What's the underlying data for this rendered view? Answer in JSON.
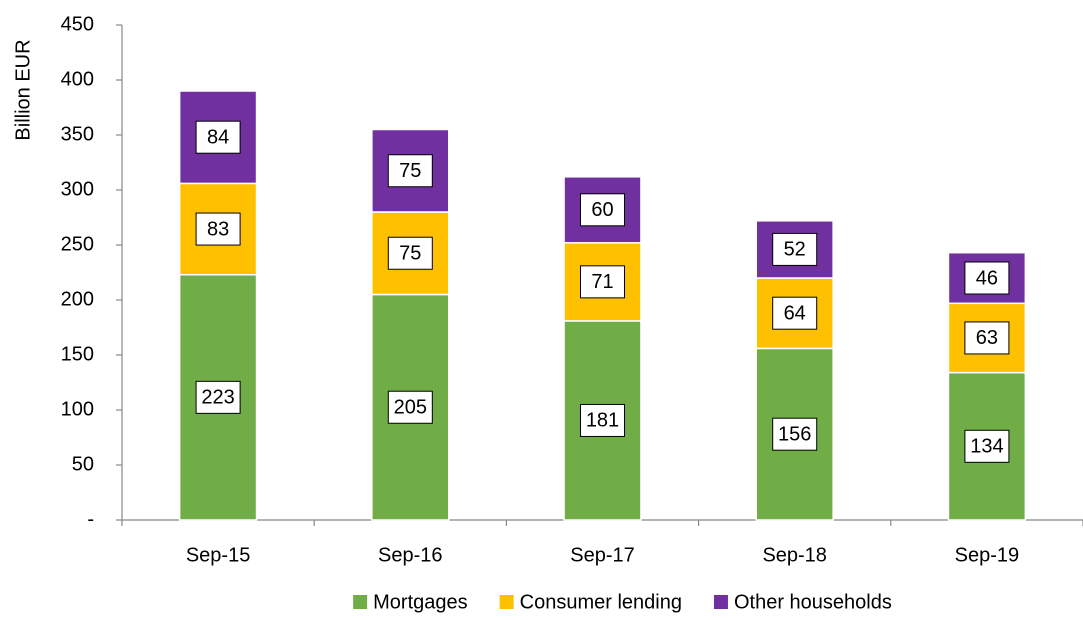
{
  "chart_data": {
    "type": "stacked_bar",
    "y_label": "Billion EUR",
    "categories": [
      "Sep-15",
      "Sep-16",
      "Sep-17",
      "Sep-18",
      "Sep-19"
    ],
    "series": [
      {
        "name": "Mortgages",
        "color": "#70ad47",
        "values": [
          223,
          205,
          181,
          156,
          134
        ]
      },
      {
        "name": "Consumer lending",
        "color": "#ffc000",
        "values": [
          83,
          75,
          71,
          64,
          63
        ]
      },
      {
        "name": "Other households",
        "color": "#7030a0",
        "values": [
          84,
          75,
          60,
          52,
          46
        ]
      }
    ],
    "ylim": [
      0,
      450
    ],
    "yticks": [
      {
        "value": 0,
        "label": "-"
      },
      50,
      100,
      150,
      200,
      250,
      300,
      350,
      400,
      450
    ],
    "grid": false,
    "legend": "bottom"
  }
}
